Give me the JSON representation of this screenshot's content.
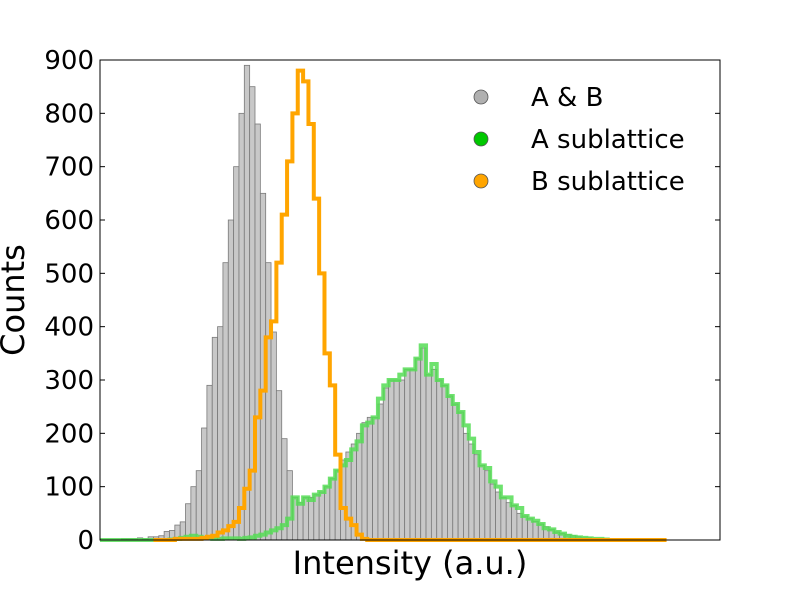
{
  "chart_data": {
    "type": "bar",
    "xlabel": "Intensity (a.u.)",
    "ylabel": "Counts",
    "xlim": [
      0,
      116
    ],
    "ylim": [
      0,
      900
    ],
    "yticks": [
      0,
      100,
      200,
      300,
      400,
      500,
      600,
      700,
      800,
      900
    ],
    "grid": false,
    "legend_position": "top-right",
    "legend": [
      {
        "label": "A & B",
        "color": "#b0b0b0"
      },
      {
        "label": "A sublattice",
        "color": "#00c800"
      },
      {
        "label": "B sublattice",
        "color": "#ffa500"
      }
    ],
    "series": [
      {
        "name": "A & B",
        "color": "#c8c8c8",
        "style": "bars",
        "values": [
          0,
          0,
          0,
          0,
          2,
          2,
          2,
          4,
          2,
          6,
          6,
          8,
          16,
          18,
          28,
          34,
          68,
          100,
          130,
          210,
          290,
          380,
          400,
          520,
          600,
          700,
          800,
          890,
          850,
          780,
          650,
          520,
          390,
          280,
          190,
          130,
          80,
          70,
          80,
          80,
          85,
          90,
          100,
          115,
          130,
          150,
          165,
          180,
          200,
          220,
          230,
          230,
          255,
          285,
          300,
          300,
          300,
          320,
          320,
          340,
          360,
          310,
          320,
          300,
          290,
          270,
          255,
          240,
          200,
          180,
          160,
          140,
          130,
          105,
          90,
          80,
          70,
          65,
          50,
          45,
          40,
          35,
          30,
          25,
          20,
          15,
          12,
          10,
          8,
          6,
          4,
          4,
          3,
          2,
          2,
          0
        ]
      },
      {
        "name": "A sublattice",
        "color": "#55dd55",
        "style": "step",
        "values": [
          0,
          0,
          0,
          0,
          0,
          0,
          0,
          0,
          0,
          0,
          0,
          0,
          0,
          1,
          2,
          4,
          6,
          8,
          6,
          4,
          4,
          2,
          2,
          3,
          3,
          3,
          2,
          4,
          5,
          8,
          10,
          14,
          18,
          22,
          28,
          40,
          80,
          68,
          80,
          75,
          85,
          90,
          100,
          115,
          130,
          140,
          150,
          170,
          185,
          215,
          220,
          230,
          265,
          290,
          300,
          300,
          310,
          320,
          320,
          340,
          365,
          310,
          330,
          300,
          290,
          270,
          255,
          240,
          215,
          190,
          165,
          140,
          135,
          110,
          100,
          80,
          80,
          65,
          60,
          45,
          40,
          36,
          30,
          22,
          20,
          15,
          12,
          8,
          6,
          5,
          4,
          3,
          2,
          2,
          1,
          0
        ]
      },
      {
        "name": "B sublattice",
        "color": "#ffa500",
        "style": "step",
        "values": [
          0,
          0,
          0,
          0,
          2,
          2,
          2,
          2,
          2,
          4,
          6,
          8,
          14,
          18,
          26,
          34,
          60,
          96,
          130,
          230,
          280,
          380,
          410,
          520,
          610,
          710,
          800,
          880,
          860,
          780,
          640,
          500,
          350,
          290,
          160,
          60,
          40,
          28,
          10,
          2,
          0,
          0,
          0,
          0,
          0,
          0,
          0,
          0,
          0,
          0,
          0,
          0,
          0,
          0,
          0,
          0,
          0,
          0,
          0,
          0,
          0,
          0,
          0,
          0,
          0,
          0,
          0,
          0,
          0,
          0,
          0,
          0,
          0,
          0,
          0,
          0,
          0,
          0,
          0,
          0,
          0,
          0,
          0,
          0,
          0,
          0,
          0,
          0,
          0,
          0,
          0,
          0,
          0,
          0,
          0,
          0
        ],
        "bin_offset": 10
      }
    ]
  }
}
